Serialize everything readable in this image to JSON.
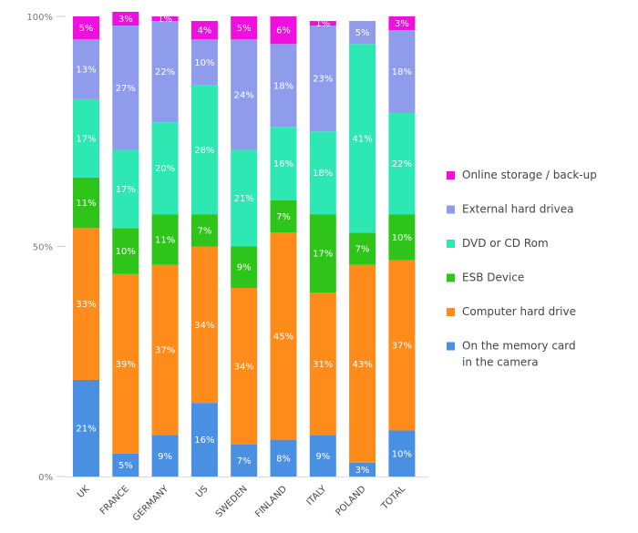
{
  "chart_data": {
    "type": "bar",
    "stacked": true,
    "normalized": true,
    "categories": [
      "UK",
      "FRANCE",
      "GERMANY",
      "US",
      "SWEDEN",
      "FINLAND",
      "ITALY",
      "POLAND",
      "TOTAL"
    ],
    "y_ticks": [
      "0%",
      "50%",
      "100%"
    ],
    "ylim": [
      0,
      100
    ],
    "grid": false,
    "legend_position": "right",
    "series": [
      {
        "name": "On the memory card in the camera",
        "legend_lines": [
          "On the memory card",
          "in the camera"
        ],
        "color": "#4a90e2",
        "values": [
          21,
          5,
          9,
          16,
          7,
          8,
          9,
          3,
          10
        ],
        "labels": [
          "21%",
          "5%",
          "9%",
          "16%",
          "7%",
          "8%",
          "9%",
          "3%",
          "10%"
        ]
      },
      {
        "name": "Computer hard drive",
        "legend_lines": [
          "Computer hard drive"
        ],
        "color": "#ff8c1a",
        "values": [
          33,
          39,
          37,
          34,
          34,
          45,
          31,
          43,
          37
        ],
        "labels": [
          "33%",
          "39%",
          "37%",
          "34%",
          "34%",
          "45%",
          "31%",
          "43%",
          "37%"
        ]
      },
      {
        "name": "ESB Device",
        "legend_lines": [
          "ESB Device"
        ],
        "color": "#2ec41a",
        "values": [
          11,
          10,
          11,
          7,
          9,
          7,
          17,
          7,
          10
        ],
        "labels": [
          "11%",
          "10%",
          "11%",
          "7%",
          "9%",
          "7%",
          "17%",
          "7%",
          "10%"
        ]
      },
      {
        "name": "DVD or CD Rom",
        "legend_lines": [
          "DVD or CD Rom"
        ],
        "color": "#2ee8b4",
        "values": [
          17,
          17,
          20,
          28,
          21,
          16,
          18,
          41,
          22
        ],
        "labels": [
          "17%",
          "17%",
          "20%",
          "28%",
          "21%",
          "16%",
          "18%",
          "41%",
          "22%"
        ]
      },
      {
        "name": "External hard drivea",
        "legend_lines": [
          "External hard drivea"
        ],
        "color": "#8f9cec",
        "values": [
          13,
          27,
          22,
          10,
          24,
          18,
          23,
          5,
          18
        ],
        "labels": [
          "13%",
          "27%",
          "22%",
          "10%",
          "24%",
          "18%",
          "23%",
          "5%",
          "18%"
        ]
      },
      {
        "name": "Online storage / back-up",
        "legend_lines": [
          "Online storage / back-up"
        ],
        "color": "#ee10de",
        "values": [
          5,
          3,
          1,
          4,
          5,
          6,
          1,
          0,
          3
        ],
        "labels": [
          "5%",
          "3%",
          "1%",
          "4%",
          "5%",
          "6%",
          "1%",
          "",
          "3%"
        ]
      }
    ]
  }
}
